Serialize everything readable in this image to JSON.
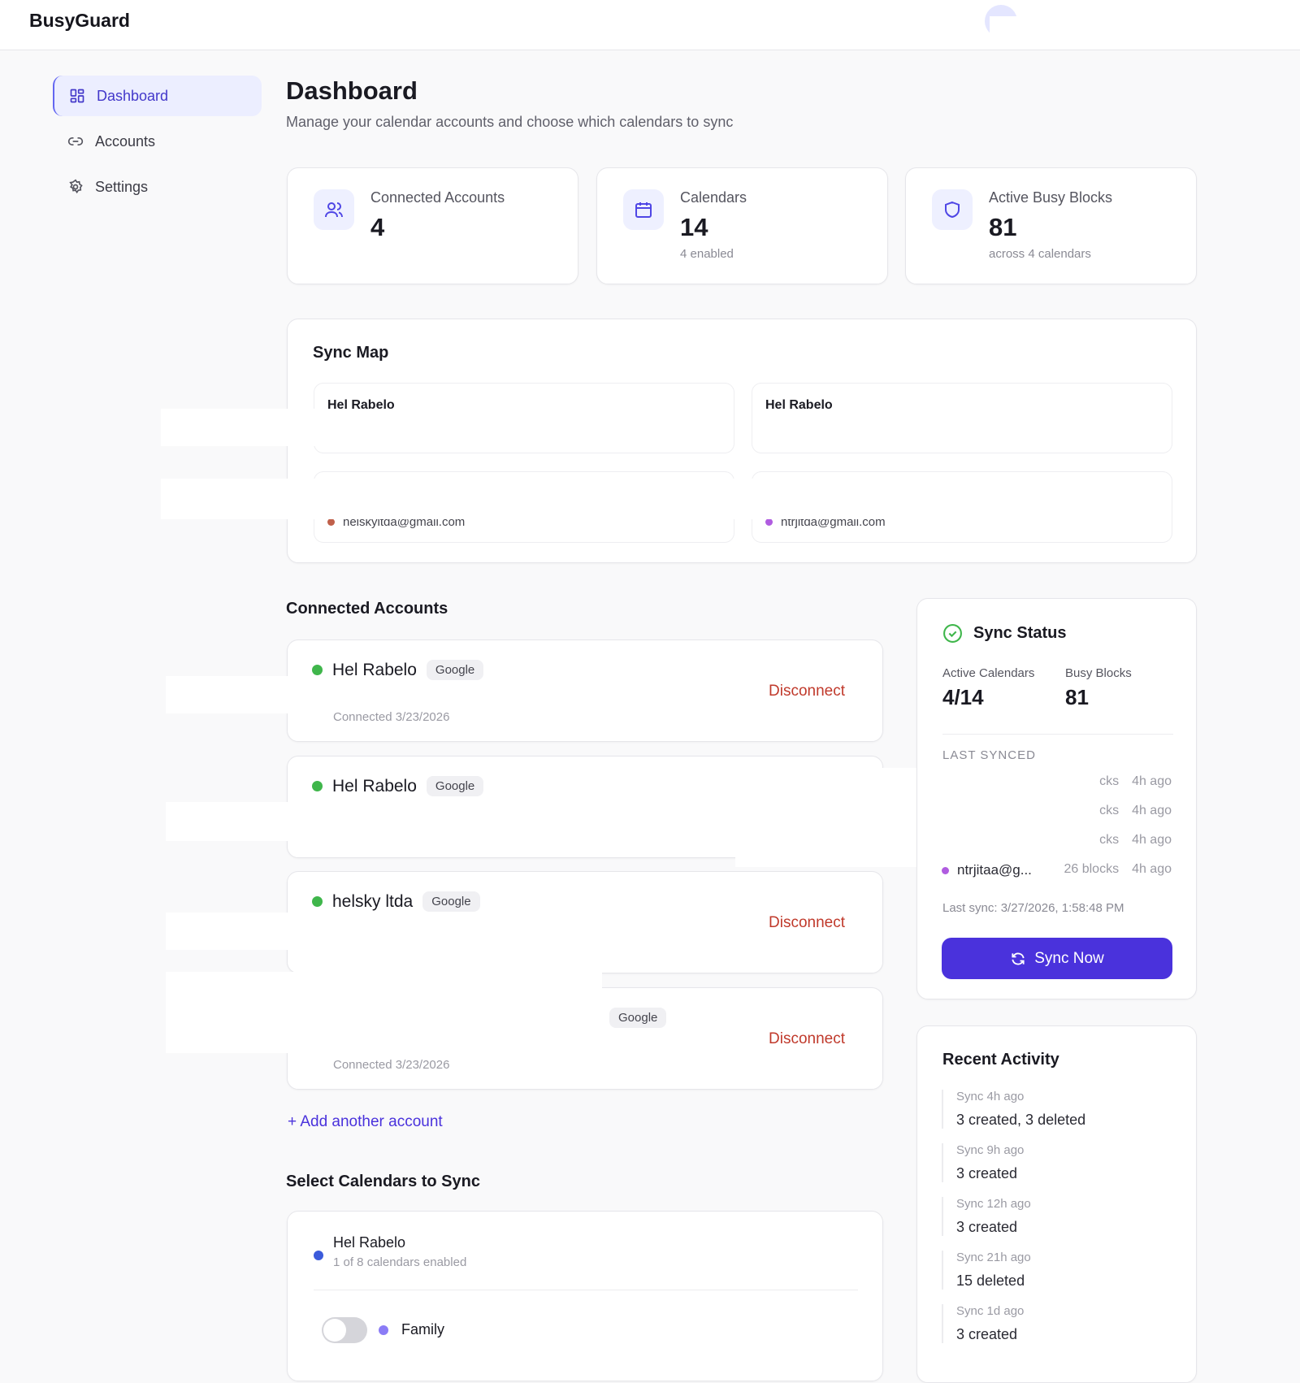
{
  "app": {
    "name": "BusyGuard"
  },
  "sidebar": {
    "items": [
      {
        "label": "Dashboard",
        "icon": "grid-icon",
        "active": true
      },
      {
        "label": "Accounts",
        "icon": "link-icon"
      },
      {
        "label": "Settings",
        "icon": "gear-icon"
      }
    ]
  },
  "page": {
    "title": "Dashboard",
    "subtitle": "Manage your calendar accounts and choose which calendars to sync"
  },
  "stats": [
    {
      "label": "Connected Accounts",
      "value": "4",
      "sub": "",
      "icon": "users-icon"
    },
    {
      "label": "Calendars",
      "value": "14",
      "sub": "4 enabled",
      "icon": "calendar-icon"
    },
    {
      "label": "Active Busy Blocks",
      "value": "81",
      "sub": "across 4 calendars",
      "icon": "shield-icon"
    }
  ],
  "sync_map": {
    "title": "Sync Map",
    "boxes": [
      {
        "name": "Hel Rabelo"
      },
      {
        "name": "Hel Rabelo"
      },
      {
        "email": "helskyltda@gmail.com",
        "color": "#c0604a"
      },
      {
        "email": "ntrjitda@gmail.com",
        "color": "#b05ce0"
      }
    ]
  },
  "accounts": {
    "title": "Connected Accounts",
    "items": [
      {
        "name": "Hel Rabelo",
        "provider": "Google",
        "action": "Disconnect",
        "connected": "Connected 3/23/2026"
      },
      {
        "name": "Hel Rabelo",
        "provider": "Google"
      },
      {
        "name": "helsky ltda",
        "provider": "Google",
        "action": "Disconnect"
      },
      {
        "provider": "Google",
        "action": "Disconnect",
        "connected": "Connected 3/23/2026"
      }
    ],
    "add_label": "+ Add another account"
  },
  "select": {
    "title": "Select Calendars to Sync",
    "account": {
      "name": "Hel Rabelo",
      "sub": "1 of 8 calendars enabled",
      "color": "#3b5bdb"
    },
    "calendars": [
      {
        "name": "Family",
        "enabled": false,
        "color": "#8b7cf6"
      }
    ]
  },
  "sync_status": {
    "title": "Sync Status",
    "active_label": "Active Calendars",
    "active_value": "4/14",
    "blocks_label": "Busy Blocks",
    "blocks_value": "81",
    "last_synced_label": "LAST SYNCED",
    "rows": [
      {
        "blocks": "cks",
        "time": "4h ago"
      },
      {
        "blocks": "cks",
        "time": "4h ago"
      },
      {
        "blocks": "cks",
        "time": "4h ago"
      },
      {
        "name": "ntrjitaa@g...",
        "blocks": "26 blocks",
        "time": "4h ago",
        "color": "#b05ce0"
      }
    ],
    "last_sync": "Last sync: 3/27/2026, 1:58:48 PM",
    "button": "Sync Now"
  },
  "activity": {
    "title": "Recent Activity",
    "items": [
      {
        "time": "Sync 4h ago",
        "detail": "3 created, 3 deleted"
      },
      {
        "time": "Sync 9h ago",
        "detail": "3 created"
      },
      {
        "time": "Sync 12h ago",
        "detail": "3 created"
      },
      {
        "time": "Sync 21h ago",
        "detail": "15 deleted"
      },
      {
        "time": "Sync 1d ago",
        "detail": "3 created"
      }
    ]
  },
  "colors": {
    "accent": "#4a32dc",
    "success": "#3fb64b",
    "danger": "#c0392b"
  }
}
